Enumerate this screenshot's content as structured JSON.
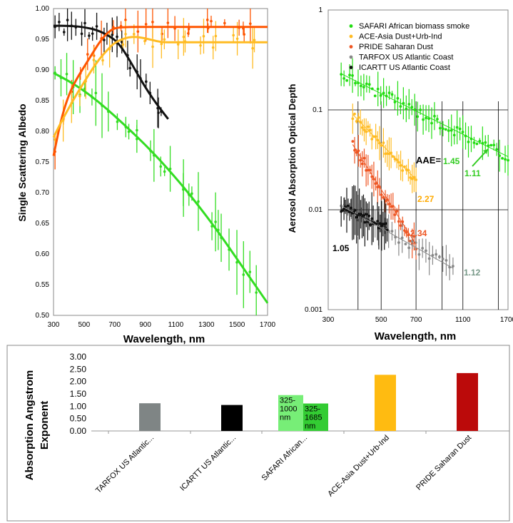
{
  "chart_data": [
    {
      "type": "line",
      "xlabel": "Wavelength, nm",
      "ylabel": "Single Scattering Albedo",
      "xticks": [
        "300",
        "500",
        "700",
        "900",
        "1100",
        "1300",
        "1500",
        "1700"
      ],
      "yticks": [
        "0.50",
        "0.55",
        "0.60",
        "0.65",
        "0.70",
        "0.75",
        "0.80",
        "0.85",
        "0.90",
        "0.95",
        "1.00"
      ],
      "xlim": [
        300,
        1700
      ],
      "ylim": [
        0.5,
        1.0
      ],
      "grid": false,
      "series": [
        {
          "color": "#33dd22",
          "x": [
            300,
            400,
            500,
            600,
            700,
            800,
            900,
            1000,
            1100,
            1200,
            1300,
            1400,
            1500,
            1600,
            1700
          ],
          "y": [
            0.895,
            0.882,
            0.866,
            0.847,
            0.825,
            0.802,
            0.778,
            0.752,
            0.724,
            0.694,
            0.662,
            0.628,
            0.592,
            0.556,
            0.52
          ]
        },
        {
          "color": "#111111",
          "x": [
            300,
            400,
            500,
            600,
            700,
            750,
            800,
            850,
            900,
            950,
            1000,
            1050
          ],
          "y": [
            0.972,
            0.972,
            0.97,
            0.964,
            0.95,
            0.935,
            0.915,
            0.893,
            0.872,
            0.853,
            0.836,
            0.82
          ]
        },
        {
          "color": "#ff5500",
          "x": [
            300,
            350,
            400,
            450,
            500,
            550,
            600,
            650,
            700,
            800,
            900,
            1100,
            1300,
            1500,
            1700
          ],
          "y": [
            0.76,
            0.82,
            0.86,
            0.885,
            0.905,
            0.925,
            0.945,
            0.96,
            0.969,
            0.97,
            0.97,
            0.97,
            0.97,
            0.97,
            0.97
          ]
        },
        {
          "color": "#ffbb22",
          "x": [
            300,
            350,
            400,
            450,
            500,
            550,
            600,
            650,
            700,
            800,
            900,
            1000,
            1100,
            1200,
            1300,
            1400,
            1500,
            1600,
            1700
          ],
          "y": [
            0.79,
            0.815,
            0.838,
            0.86,
            0.88,
            0.9,
            0.918,
            0.932,
            0.945,
            0.955,
            0.952,
            0.945,
            0.945,
            0.945,
            0.945,
            0.945,
            0.945,
            0.945,
            0.945
          ]
        }
      ]
    },
    {
      "type": "scatter",
      "xlabel": "Wavelength, nm",
      "ylabel": "Aerosol Absorption Optical Depth",
      "xscale": "log",
      "yscale": "log",
      "xticks": [
        "300",
        "500",
        "700",
        "1100",
        "1700"
      ],
      "yticks": [
        "1",
        "0.1",
        "0.01",
        "0.001"
      ],
      "xlim": [
        300,
        1700
      ],
      "ylim": [
        0.001,
        1
      ],
      "legend_position": "top-right",
      "legend": [
        {
          "label": "SAFARI African biomass smoke",
          "color": "#22dd11"
        },
        {
          "label": "ACE-Asia Dust+Urb-Ind",
          "color": "#ffbb22"
        },
        {
          "label": "PRIDE Saharan Dust",
          "color": "#ee5522"
        },
        {
          "label": "TARFOX US Atlantic Coast",
          "color": "#888888"
        },
        {
          "label": "ICARTT US Atlantic Coast",
          "color": "#111111"
        }
      ],
      "fit_lines": [
        {
          "color": "#22dd11",
          "x": [
            340,
            1700
          ],
          "y": [
            0.23,
            0.034
          ]
        },
        {
          "color": "#ffbb22",
          "x": [
            380,
            700
          ],
          "y": [
            0.09,
            0.02
          ]
        },
        {
          "color": "#ee5522",
          "x": [
            380,
            700
          ],
          "y": [
            0.045,
            0.0045
          ]
        },
        {
          "color": "#888888",
          "x": [
            340,
            1000
          ],
          "y": [
            0.011,
            0.0026
          ]
        },
        {
          "color": "#111111",
          "x": [
            340,
            530
          ],
          "y": [
            0.0105,
            0.0066
          ]
        }
      ],
      "annotations": [
        {
          "text": "AAE=",
          "color": "#000000"
        },
        {
          "text": "1.45",
          "color": "#33cc22"
        },
        {
          "text": "1.11",
          "color": "#33cc22"
        },
        {
          "text": "2.27",
          "color": "#ffaa00"
        },
        {
          "text": "2.34",
          "color": "#ee5522"
        },
        {
          "text": "1.05",
          "color": "#000000"
        },
        {
          "text": "1.12",
          "color": "#779988"
        }
      ]
    },
    {
      "type": "bar",
      "ylabel": "Absorption Angstrom Exponent",
      "categories": [
        "TARFOX US Atlantic...",
        "ICARTT US Atlantic...",
        "SAFARI African...",
        "ACE-Asia Dust+Urb-Ind",
        "PRIDE Saharan Dust"
      ],
      "yticks": [
        "3.00",
        "2.50",
        "2.00",
        "1.50",
        "1.00",
        "0.50",
        "0.00"
      ],
      "ylim": [
        0,
        3.0
      ],
      "values": [
        1.12,
        1.05,
        1.11,
        2.27,
        2.34
      ],
      "colors": [
        "#7f8585",
        "#000000",
        "#33cc33",
        "#ffbb11",
        "#bb0a0a"
      ],
      "safari_split": [
        {
          "value": 1.45,
          "label": [
            "325-",
            "1000",
            "nm"
          ],
          "color": "#77ee77"
        },
        {
          "value": 1.11,
          "label": [
            "325-",
            "1685",
            "nm"
          ],
          "color": "#33cc33"
        }
      ]
    }
  ]
}
